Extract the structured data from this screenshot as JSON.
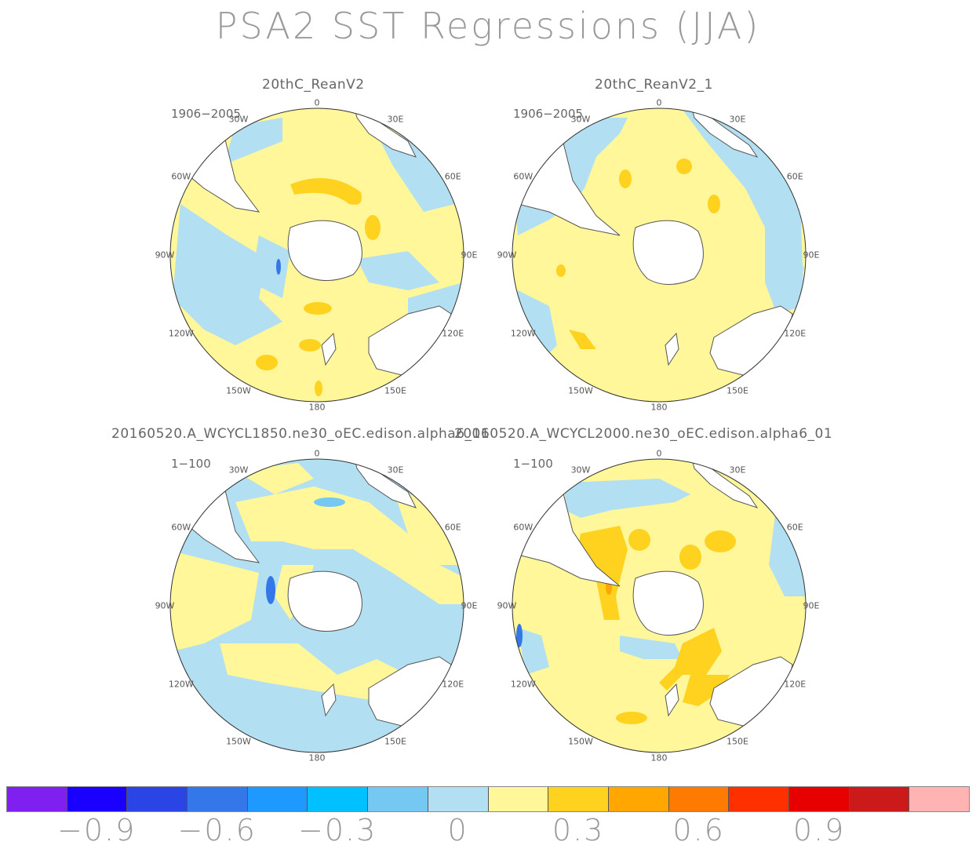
{
  "title": "PSA2 SST Regressions (JJA)",
  "panels": [
    {
      "name": "20thC_ReanV2",
      "period": "1906−2005"
    },
    {
      "name": "20thC_ReanV2_1",
      "period": "1906−2005"
    },
    {
      "name": "20160520.A_WCYCL1850.ne30_oEC.edison.alpha6_01",
      "period": "1−100"
    },
    {
      "name": "20160520.A_WCYCL2000.ne30_oEC.edison.alpha6_01",
      "period": "1−100"
    }
  ],
  "lon_labels": [
    "0",
    "30E",
    "60E",
    "90E",
    "120E",
    "150E",
    "180",
    "150W",
    "120W",
    "90W",
    "60W",
    "30W"
  ],
  "colorbar": {
    "colors": [
      "#8020f0",
      "#1a00ff",
      "#2a44e6",
      "#3377e8",
      "#1e99ff",
      "#00c0ff",
      "#75c8f2",
      "#b3dff2",
      "#fff799",
      "#ffd21f",
      "#ffa600",
      "#ff7a00",
      "#ff3000",
      "#e60000",
      "#cc1a1a",
      "#ffb3b3"
    ],
    "labels": [
      "−0.9",
      "−0.6",
      "−0.3",
      "0",
      "0.3",
      "0.6",
      "0.9"
    ]
  },
  "chart_data": {
    "type": "heatmap",
    "title": "PSA2 SST Regressions (JJA)",
    "projection": "south-polar-stereographic",
    "colorbar_levels": [
      -1.05,
      -0.9,
      -0.75,
      -0.6,
      -0.45,
      -0.3,
      -0.15,
      0,
      0.15,
      0.3,
      0.45,
      0.6,
      0.75,
      0.9,
      1.05
    ],
    "panels": [
      "20thC_ReanV2",
      "20thC_ReanV2_1",
      "20160520.A_WCYCL1850.ne30_oEC.edison.alpha6_01",
      "20160520.A_WCYCL2000.ne30_oEC.edison.alpha6_01"
    ]
  }
}
